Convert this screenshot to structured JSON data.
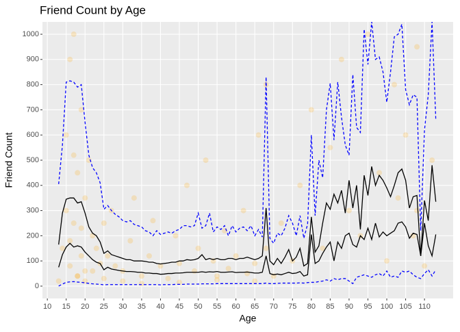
{
  "chart_data": {
    "type": "scatter",
    "title": "Friend Count by Age",
    "x_label": "Age",
    "y_label": "Friend Count",
    "xlim": [
      8.7,
      117.6
    ],
    "ylim": [
      -49,
      1049
    ],
    "xticks": [
      10,
      15,
      20,
      25,
      30,
      35,
      40,
      45,
      50,
      55,
      60,
      65,
      70,
      75,
      80,
      85,
      90,
      95,
      100,
      105,
      110
    ],
    "yticks": [
      0,
      100,
      200,
      300,
      400,
      500,
      600,
      700,
      800,
      900,
      1000
    ],
    "grid": true,
    "x": [
      13,
      14,
      15,
      16,
      17,
      18,
      19,
      20,
      21,
      22,
      23,
      24,
      25,
      26,
      27,
      28,
      29,
      30,
      31,
      32,
      33,
      34,
      35,
      36,
      37,
      38,
      39,
      40,
      41,
      42,
      43,
      44,
      45,
      46,
      47,
      48,
      49,
      50,
      51,
      52,
      53,
      54,
      55,
      56,
      57,
      58,
      59,
      60,
      61,
      62,
      63,
      64,
      65,
      66,
      67,
      68,
      69,
      70,
      71,
      72,
      73,
      74,
      75,
      76,
      77,
      78,
      79,
      80,
      81,
      82,
      83,
      84,
      85,
      86,
      87,
      88,
      89,
      90,
      91,
      92,
      93,
      94,
      95,
      96,
      97,
      98,
      99,
      100,
      101,
      102,
      103,
      104,
      105,
      106,
      107,
      108,
      109,
      110,
      111,
      112,
      113
    ],
    "series": [
      {
        "mode": "points",
        "color": "#ffa500",
        "x": [
          13,
          14,
          15,
          15,
          16,
          16,
          17,
          17,
          18,
          18,
          19,
          19,
          20,
          20,
          21,
          22,
          23,
          24,
          25,
          26,
          27,
          28,
          30,
          32,
          33,
          35,
          37,
          38,
          40,
          42,
          44,
          45,
          47,
          49,
          50,
          52,
          54,
          55,
          57,
          58,
          60,
          62,
          63,
          65,
          66,
          68,
          68,
          70,
          72,
          75,
          77,
          80,
          83,
          85,
          88,
          90,
          93,
          95,
          98,
          100,
          102,
          103,
          105,
          107,
          108,
          108,
          110,
          112,
          16,
          18,
          20,
          22,
          25,
          30,
          35,
          45,
          55,
          65,
          17,
          19
        ],
        "values": [
          20,
          150,
          300,
          600,
          80,
          900,
          250,
          1000,
          450,
          40,
          700,
          120,
          350,
          60,
          500,
          200,
          150,
          90,
          250,
          120,
          300,
          80,
          60,
          180,
          350,
          40,
          120,
          260,
          80,
          30,
          200,
          90,
          400,
          60,
          150,
          500,
          100,
          40,
          220,
          70,
          120,
          300,
          50,
          90,
          600,
          800,
          150,
          40,
          250,
          100,
          400,
          700,
          150,
          550,
          900,
          300,
          200,
          1000,
          450,
          100,
          800,
          350,
          600,
          200,
          950,
          300,
          80,
          500,
          180,
          40,
          20,
          60,
          30,
          20,
          10,
          15,
          25,
          20,
          520,
          230
        ]
      },
      {
        "mode": "line",
        "color": "#000000",
        "dash": false,
        "values": [
          165,
          290,
          345,
          350,
          350,
          330,
          335,
          290,
          235,
          210,
          200,
          175,
          130,
          140,
          125,
          120,
          115,
          110,
          105,
          105,
          100,
          100,
          100,
          98,
          95,
          95,
          90,
          88,
          90,
          92,
          95,
          95,
          100,
          100,
          105,
          103,
          105,
          110,
          125,
          105,
          110,
          105,
          110,
          105,
          105,
          110,
          110,
          105,
          110,
          110,
          115,
          110,
          105,
          110,
          120,
          310,
          100,
          85,
          110,
          90,
          115,
          145,
          100,
          115,
          150,
          80,
          90,
          275,
          135,
          160,
          250,
          330,
          305,
          365,
          330,
          380,
          290,
          420,
          310,
          400,
          225,
          440,
          360,
          475,
          400,
          440,
          420,
          390,
          355,
          400,
          450,
          465,
          420,
          310,
          355,
          360,
          120,
          340,
          260,
          480,
          335
        ]
      },
      {
        "mode": "line",
        "color": "#000000",
        "dash": false,
        "values": [
          75,
          125,
          155,
          170,
          155,
          160,
          155,
          135,
          120,
          105,
          95,
          90,
          65,
          75,
          68,
          65,
          62,
          60,
          58,
          58,
          57,
          55,
          55,
          52,
          52,
          50,
          50,
          47,
          48,
          50,
          50,
          52,
          52,
          53,
          55,
          55,
          55,
          55,
          57,
          55,
          57,
          56,
          58,
          55,
          55,
          56,
          57,
          54,
          55,
          55,
          56,
          54,
          52,
          52,
          55,
          120,
          50,
          45,
          48,
          45,
          50,
          55,
          50,
          52,
          58,
          40,
          45,
          205,
          90,
          100,
          130,
          155,
          175,
          100,
          175,
          150,
          200,
          210,
          165,
          155,
          200,
          185,
          230,
          185,
          250,
          195,
          215,
          200,
          210,
          220,
          250,
          255,
          235,
          190,
          210,
          205,
          120,
          250,
          160,
          120,
          205
        ]
      },
      {
        "mode": "line",
        "color": "#0000ff",
        "dash": true,
        "values": [
          405,
          560,
          810,
          815,
          810,
          790,
          800,
          650,
          520,
          470,
          450,
          410,
          305,
          320,
          300,
          285,
          275,
          260,
          255,
          260,
          245,
          240,
          235,
          220,
          215,
          200,
          220,
          205,
          210,
          215,
          210,
          220,
          225,
          240,
          240,
          235,
          240,
          290,
          230,
          240,
          290,
          215,
          235,
          225,
          240,
          200,
          240,
          215,
          230,
          235,
          220,
          240,
          200,
          225,
          195,
          830,
          190,
          170,
          210,
          200,
          230,
          280,
          250,
          200,
          280,
          190,
          245,
          600,
          280,
          500,
          430,
          700,
          805,
          580,
          810,
          670,
          560,
          520,
          840,
          630,
          610,
          1020,
          880,
          1050,
          900,
          910,
          850,
          730,
          850,
          990,
          1000,
          1040,
          780,
          720,
          760,
          750,
          220,
          620,
          760,
          1050,
          660
        ]
      },
      {
        "mode": "line",
        "color": "#0000ff",
        "dash": true,
        "values": [
          0,
          8,
          15,
          17,
          18,
          16,
          15,
          13,
          11,
          9,
          8,
          7,
          5,
          6,
          6,
          6,
          6,
          6,
          6,
          6,
          6,
          6,
          6,
          6,
          6,
          6,
          6,
          5,
          6,
          6,
          6,
          7,
          7,
          7,
          8,
          8,
          8,
          8,
          9,
          9,
          9,
          9,
          10,
          10,
          10,
          10,
          10,
          10,
          10,
          10,
          10,
          10,
          10,
          10,
          10,
          12,
          10,
          10,
          11,
          12,
          12,
          12,
          12,
          12,
          13,
          12,
          14,
          15,
          15,
          18,
          20,
          25,
          20,
          30,
          25,
          30,
          30,
          20,
          10,
          35,
          40,
          45,
          40,
          35,
          45,
          50,
          40,
          60,
          35,
          40,
          35,
          60,
          55,
          60,
          45,
          35,
          30,
          50,
          65,
          40,
          65
        ]
      }
    ]
  }
}
